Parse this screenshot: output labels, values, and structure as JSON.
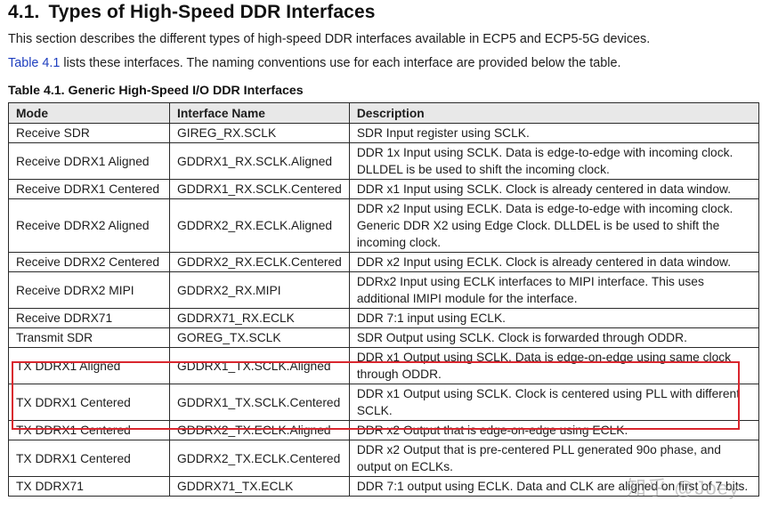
{
  "section": {
    "number": "4.1.",
    "title": "Types of High-Speed DDR Interfaces",
    "paragraph1": "This section describes the different types of high-speed DDR interfaces available in ECP5 and ECP5-5G devices.",
    "paragraph2_link": "Table 4.1",
    "paragraph2_rest": " lists these interfaces. The naming conventions use for each interface are provided below the table."
  },
  "table": {
    "caption": "Table 4.1. Generic High-Speed I/O DDR Interfaces",
    "headers": [
      "Mode",
      "Interface Name",
      "Description"
    ],
    "rows": [
      {
        "mode": "Receive SDR",
        "interface": "GIREG_RX.SCLK",
        "description": "SDR Input register using SCLK."
      },
      {
        "mode": "Receive DDRX1 Aligned",
        "interface": "GDDRX1_RX.SCLK.Aligned",
        "description": "DDR 1x Input using SCLK. Data is edge-to-edge with incoming clock. DLLDEL is be used to shift the incoming clock."
      },
      {
        "mode": "Receive DDRX1 Centered",
        "interface": "GDDRX1_RX.SCLK.Centered",
        "description": "DDR x1 Input using SCLK. Clock is already centered in data window."
      },
      {
        "mode": "Receive DDRX2 Aligned",
        "interface": "GDDRX2_RX.ECLK.Aligned",
        "description": "DDR x2 Input using ECLK. Data is edge-to-edge with incoming clock. Generic DDR X2 using Edge Clock. DLLDEL is be used to shift the incoming clock."
      },
      {
        "mode": "Receive DDRX2 Centered",
        "interface": "GDDRX2_RX.ECLK.Centered",
        "description": "DDR x2 Input using ECLK. Clock is already centered in data window."
      },
      {
        "mode": "Receive DDRX2 MIPI",
        "interface": "GDDRX2_RX.MIPI",
        "description": "DDRx2 Input using ECLK interfaces to MIPI interface. This uses additional IMIPI module for the interface."
      },
      {
        "mode": "Receive DDRX71",
        "interface": "GDDRX71_RX.ECLK",
        "description": "DDR 7:1 input using ECLK."
      },
      {
        "mode": "Transmit SDR",
        "interface": "GOREG_TX.SCLK",
        "description": "SDR Output using SCLK. Clock is forwarded through ODDR."
      },
      {
        "mode": "TX DDRX1 Aligned",
        "interface": "GDDRX1_TX.SCLK.Aligned",
        "description": "DDR x1 Output using SCLK. Data is edge-on-edge using same clock through ODDR."
      },
      {
        "mode": "TX DDRX1 Centered",
        "interface": "GDDRX1_TX.SCLK.Centered",
        "description": "DDR x1 Output using SCLK. Clock is centered using PLL with different SCLK."
      },
      {
        "mode": "TX DDRX1 Centered",
        "interface": "GDDRX2_TX.ECLK.Aligned",
        "description": "DDR x2 Output that is edge-on-edge using ECLK."
      },
      {
        "mode": "TX DDRX1 Centered",
        "interface": "GDDRX2_TX.ECLK.Centered",
        "description": "DDR x2 Output that is pre-centered PLL generated 90o phase, and output on ECLKs."
      },
      {
        "mode": "TX DDRX71",
        "interface": "GDDRX71_TX.ECLK",
        "description": "DDR 7:1 output using ECLK. Data and CLK are aligned on first of 7 bits."
      }
    ]
  },
  "annotation": {
    "highlight_color": "#d9262e",
    "highlighted_rows": [
      8,
      9
    ]
  },
  "watermark": "知乎 @Joey",
  "colors": {
    "link": "#1f3fbf",
    "header_bg": "#e8e8e8"
  }
}
